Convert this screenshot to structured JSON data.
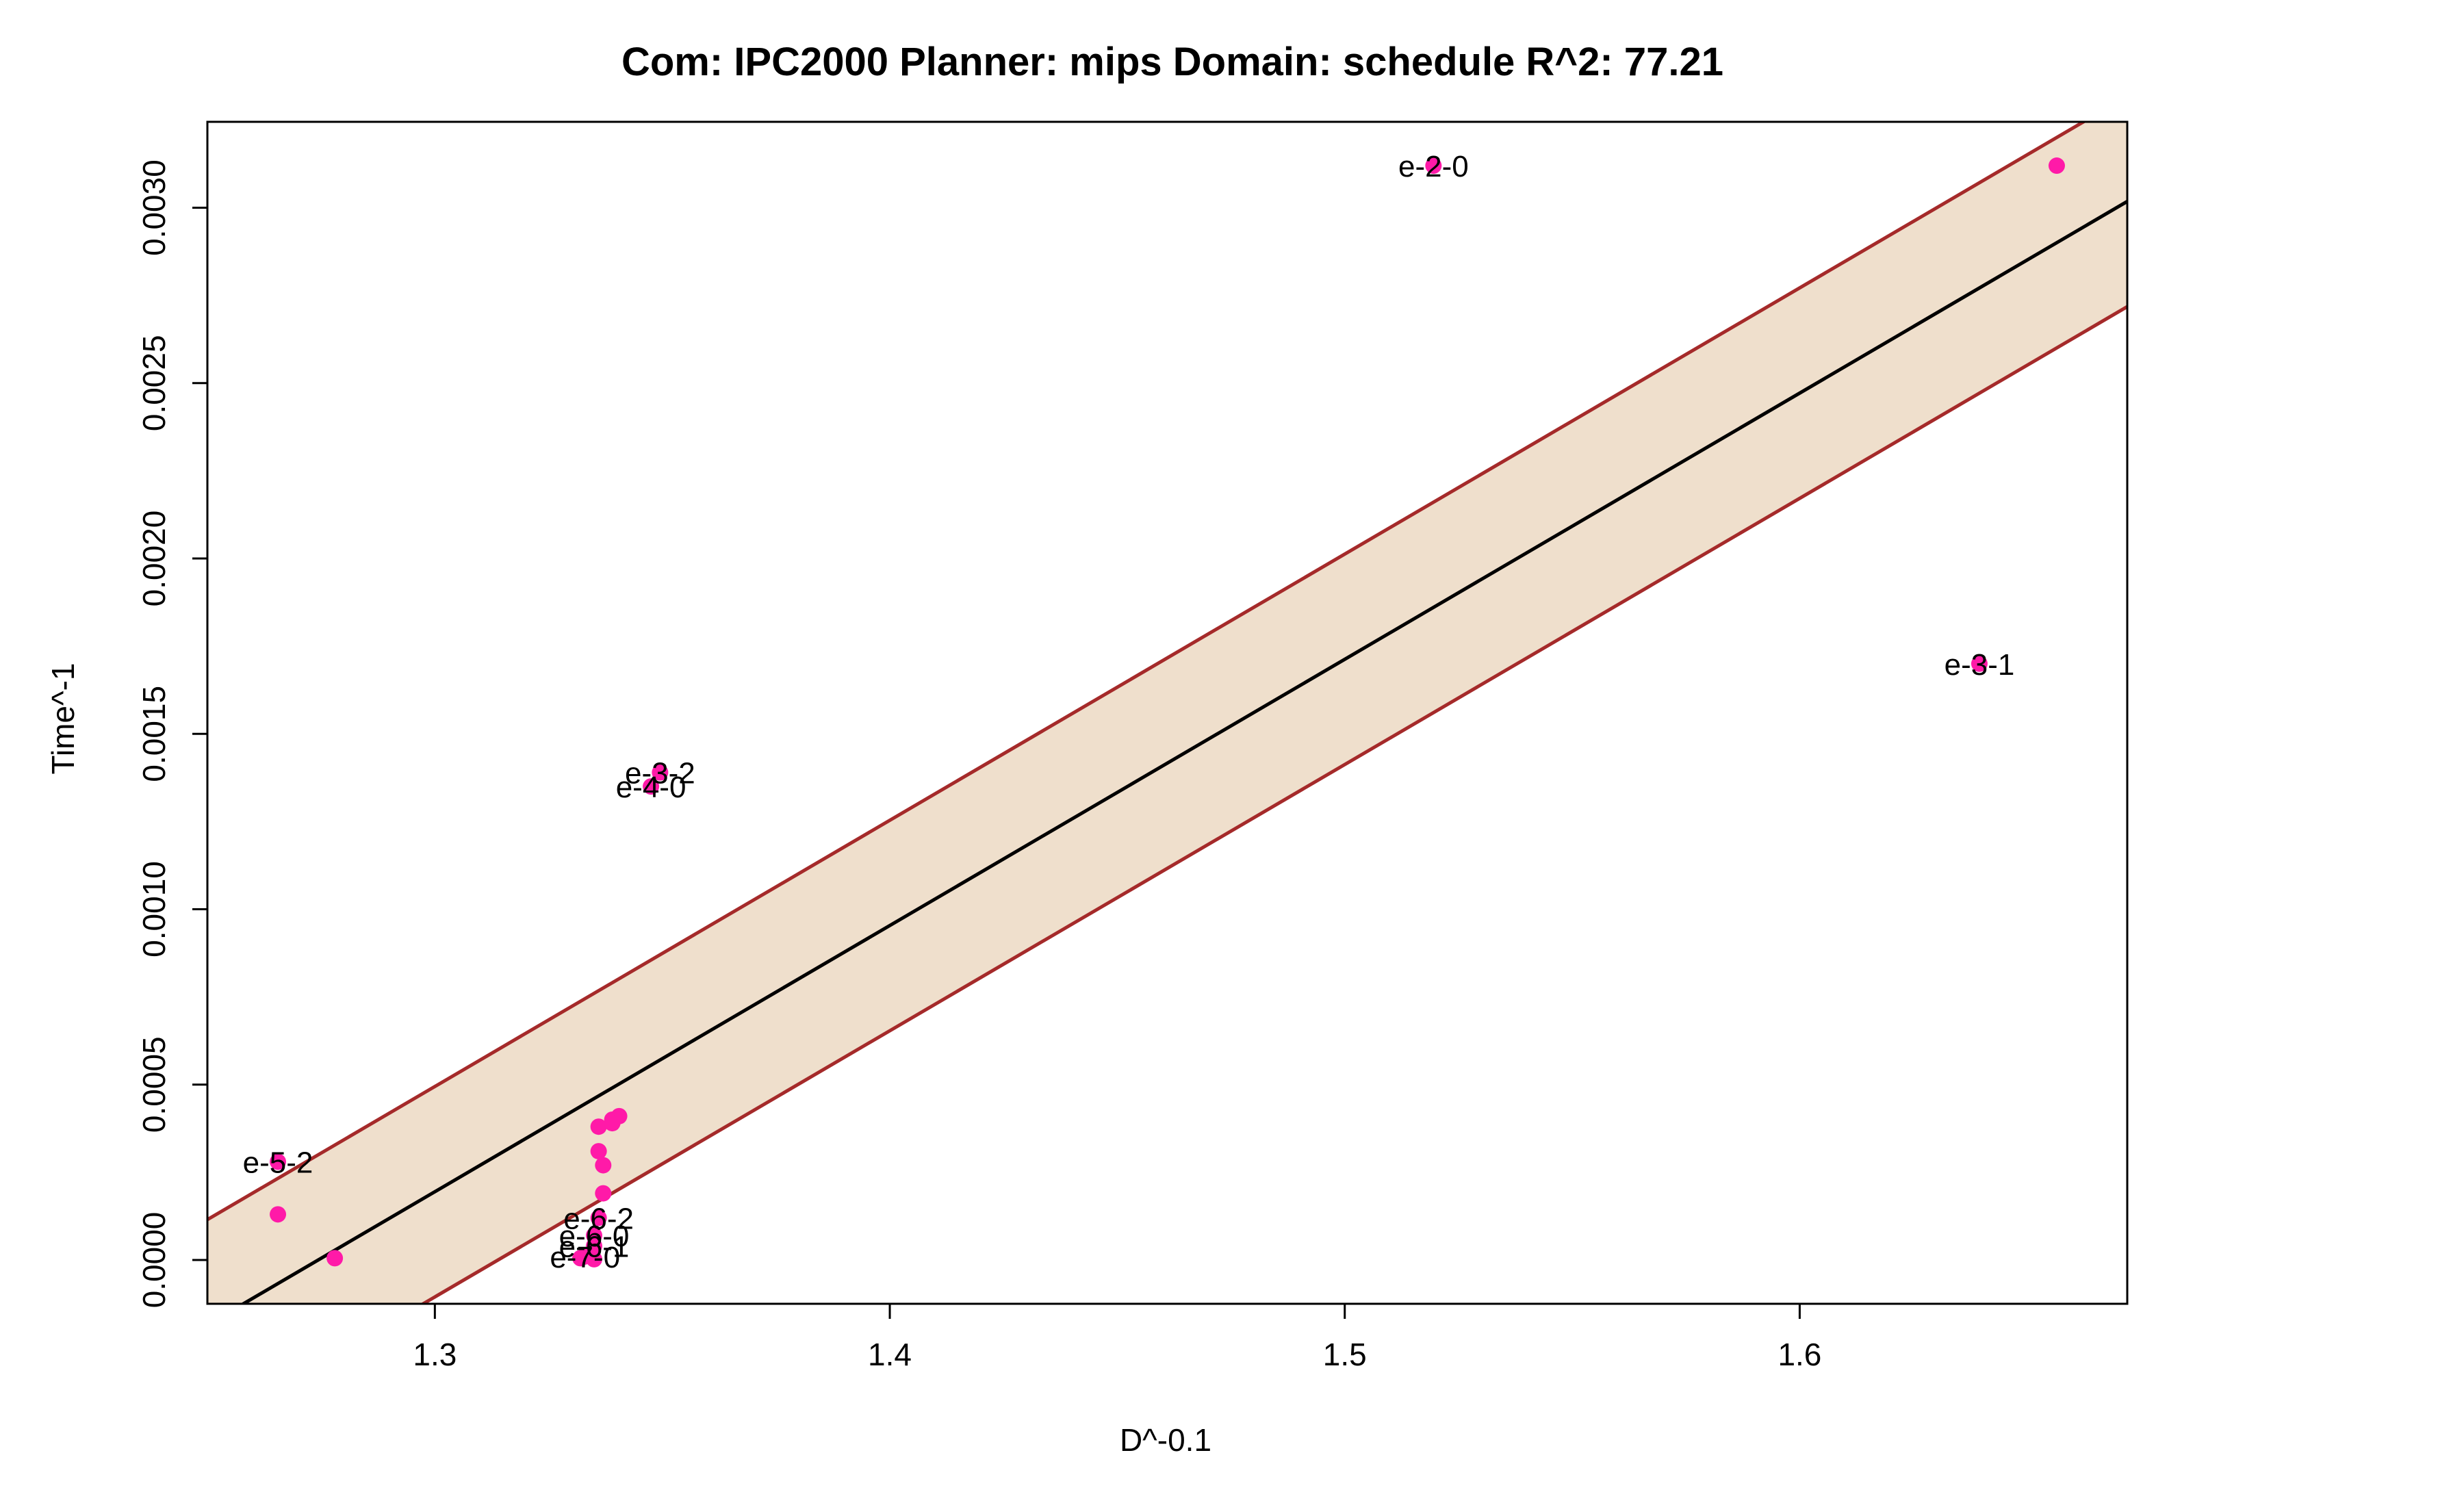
{
  "chart_data": {
    "type": "scatter",
    "title": "Com: IPC2000 Planner: mips Domain: schedule R^2: 77.21",
    "xlabel": "D^-0.1",
    "ylabel": "Time^-1",
    "xlim": [
      1.25,
      1.672
    ],
    "ylim": [
      -0.000125,
      0.003245
    ],
    "x_ticks": [
      {
        "value": 1.3,
        "label": "1.3"
      },
      {
        "value": 1.4,
        "label": "1.4"
      },
      {
        "value": 1.5,
        "label": "1.5"
      },
      {
        "value": 1.6,
        "label": "1.6"
      }
    ],
    "y_ticks": [
      {
        "value": 0.0,
        "label": "0.0000"
      },
      {
        "value": 0.0005,
        "label": "0.0005"
      },
      {
        "value": 0.001,
        "label": "0.0010"
      },
      {
        "value": 0.0015,
        "label": "0.0015"
      },
      {
        "value": 0.002,
        "label": "0.0020"
      },
      {
        "value": 0.0025,
        "label": "0.0025"
      },
      {
        "value": 0.003,
        "label": "0.0030"
      }
    ],
    "fit_line": {
      "x": [
        1.25,
        1.672
      ],
      "y": [
        -0.000185,
        0.003018
      ]
    },
    "band": {
      "upper": [
        0.000115,
        0.003318
      ],
      "lower": [
        -0.000485,
        0.002718
      ]
    },
    "colors": {
      "points": "#ff1aa8",
      "fit_line": "#000000",
      "band_fill": "#efdfcc",
      "band_edge": "#a52a2a"
    },
    "points": [
      {
        "x": 1.6565,
        "y": 0.00312
      },
      {
        "x": 1.5195,
        "y": 0.00312,
        "label": "e-2-0"
      },
      {
        "x": 1.6395,
        "y": 0.0017,
        "label": "e-3-1"
      },
      {
        "x": 1.3495,
        "y": 0.00139,
        "label": "e-3-2"
      },
      {
        "x": 1.3475,
        "y": 0.00135,
        "label": "e-4-0"
      },
      {
        "x": 1.2655,
        "y": 0.00028,
        "label": "e-5-2"
      },
      {
        "x": 1.2655,
        "y": 0.00013
      },
      {
        "x": 1.278,
        "y": 5e-06
      },
      {
        "x": 1.3405,
        "y": 0.00041
      },
      {
        "x": 1.339,
        "y": 0.0004
      },
      {
        "x": 1.339,
        "y": 0.00039
      },
      {
        "x": 1.336,
        "y": 0.00038
      },
      {
        "x": 1.336,
        "y": 0.00031
      },
      {
        "x": 1.337,
        "y": 0.00027
      },
      {
        "x": 1.337,
        "y": 0.00019
      },
      {
        "x": 1.336,
        "y": 0.00012,
        "label": "e-6-2"
      },
      {
        "x": 1.335,
        "y": 7e-05,
        "label": "e-6-0"
      },
      {
        "x": 1.335,
        "y": 4e-05,
        "label": "e-6-1"
      },
      {
        "x": 1.333,
        "y": 1e-05,
        "label": "e-7-0"
      },
      {
        "x": 1.332,
        "y": 5e-06
      },
      {
        "x": 1.335,
        "y": 2e-06
      }
    ]
  }
}
